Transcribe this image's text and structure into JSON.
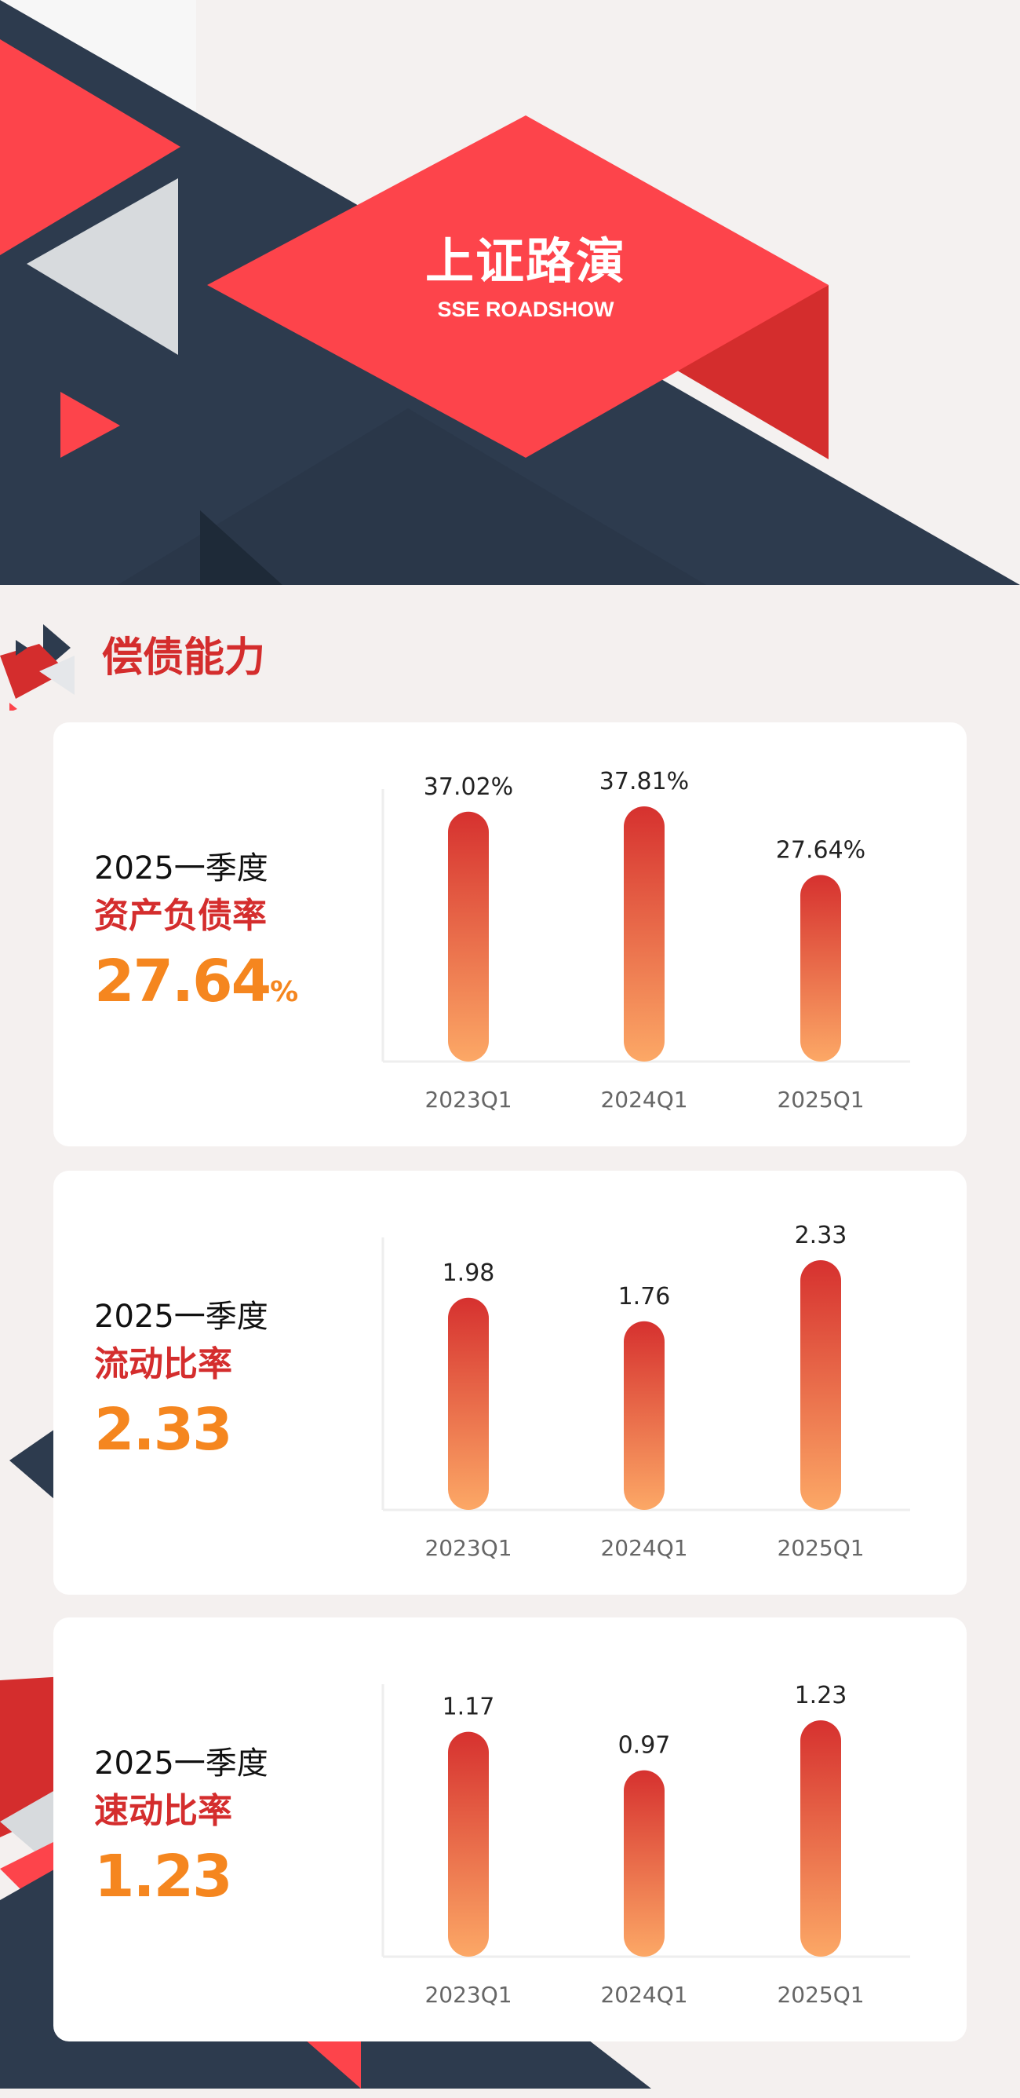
{
  "header": {
    "logo_cn": "上证路演",
    "logo_en": "SSE ROADSHOW"
  },
  "section": {
    "title": "偿债能力"
  },
  "colors": {
    "accent_red": "#d42d2d",
    "value_orange": "#f5861f",
    "bar_top": "#d6312f",
    "bar_bottom": "#fca866",
    "navy": "#2d3b4e"
  },
  "cards": [
    {
      "period": "2025一季度",
      "metric": "资产负债率",
      "value": "27.64",
      "unit": "%"
    },
    {
      "period": "2025一季度",
      "metric": "流动比率",
      "value": "2.33",
      "unit": ""
    },
    {
      "period": "2025一季度",
      "metric": "速动比率",
      "value": "1.23",
      "unit": ""
    }
  ],
  "chart_data": [
    {
      "type": "bar",
      "categories": [
        "2023Q1",
        "2024Q1",
        "2025Q1"
      ],
      "values": [
        37.02,
        37.81,
        27.64
      ],
      "labels": [
        "37.02%",
        "37.81%",
        "27.64%"
      ]
    },
    {
      "type": "bar",
      "categories": [
        "2023Q1",
        "2024Q1",
        "2025Q1"
      ],
      "values": [
        1.98,
        1.76,
        2.33
      ],
      "labels": [
        "1.98",
        "1.76",
        "2.33"
      ]
    },
    {
      "type": "bar",
      "categories": [
        "2023Q1",
        "2024Q1",
        "2025Q1"
      ],
      "values": [
        1.17,
        0.97,
        1.23
      ],
      "labels": [
        "1.17",
        "0.97",
        "1.23"
      ]
    }
  ]
}
